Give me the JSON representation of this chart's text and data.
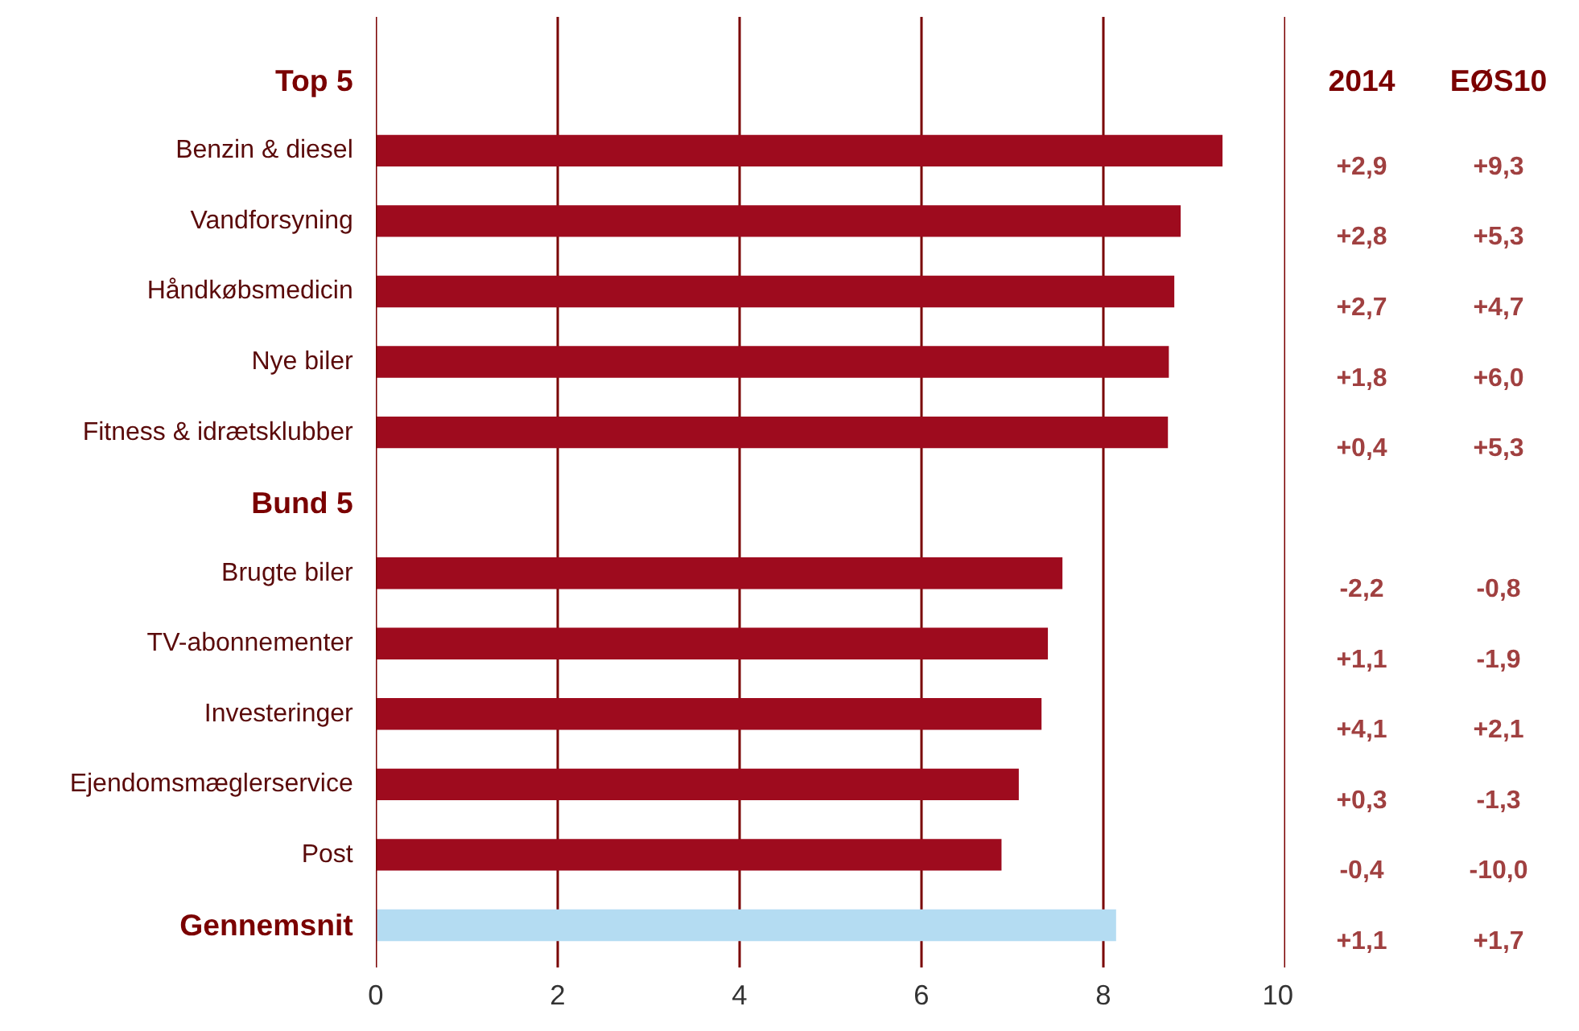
{
  "chart_data": {
    "type": "bar",
    "orientation": "horizontal",
    "categories": [
      "Top 5",
      "Benzin & diesel",
      "Vandforsyning",
      "Håndkøbsmedicin",
      "Nye biler",
      "Fitness & idrætsklubber",
      "Bund 5",
      "Brugte biler",
      "TV-abonnementer",
      "Investeringer",
      "Ejendomsmæglerservice",
      "Post",
      "Gennemsnit"
    ],
    "values": [
      null,
      9.31,
      8.85,
      8.78,
      8.72,
      8.71,
      null,
      7.55,
      7.39,
      7.32,
      7.07,
      6.88,
      8.14
    ],
    "colors": [
      null,
      "#9e0b1e",
      "#9e0b1e",
      "#9e0b1e",
      "#9e0b1e",
      "#9e0b1e",
      null,
      "#9e0b1e",
      "#9e0b1e",
      "#9e0b1e",
      "#9e0b1e",
      "#9e0b1e",
      "#b4dcf2"
    ],
    "xlim": [
      0,
      10
    ],
    "xticks": [
      0,
      2,
      4,
      6,
      8,
      10
    ],
    "grid": "x",
    "annotations": [
      "2014",
      "EØS10",
      "+2,9",
      "+9,3",
      "+2,8",
      "+5,3",
      "+2,7",
      "+4,7",
      "+1,8",
      "+6,0",
      "+0,4",
      "+5,3",
      "-2,2",
      "-0,8",
      "+1,1",
      "-1,9",
      "+4,1",
      "+2,1",
      "+0,3",
      "-1,3",
      "-0,4",
      "-10,0",
      "+1,1",
      "+1,7"
    ]
  }
}
